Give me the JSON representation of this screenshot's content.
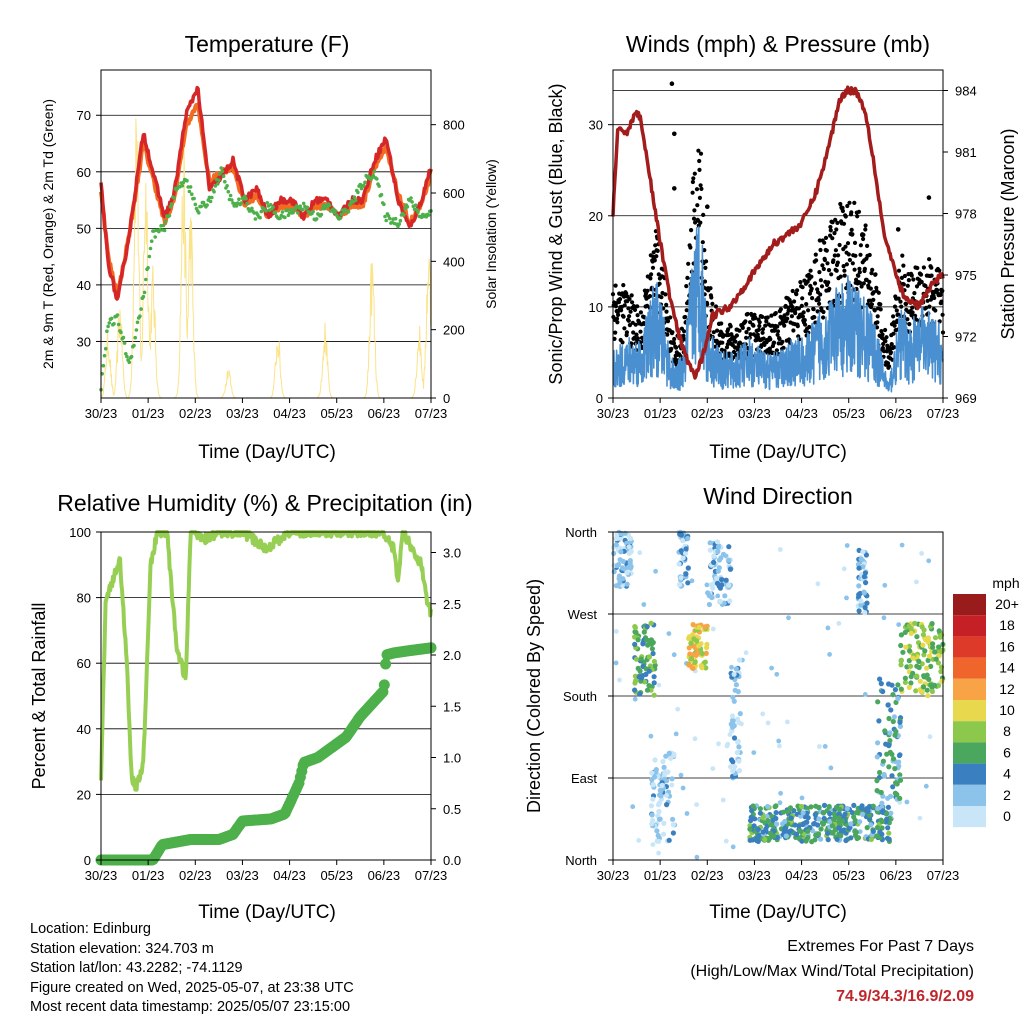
{
  "time_ticks": [
    "30/23",
    "01/23",
    "02/23",
    "03/23",
    "04/23",
    "05/23",
    "06/23",
    "07/23"
  ],
  "colors": {
    "temp2m": "#d62728",
    "temp9m": "#f26b21",
    "dewpoint": "#4db04a",
    "solar": "#fbe38a",
    "gust": "#000000",
    "wind": "#4a90d0",
    "pressure": "#a31c1c",
    "rh": "#97cf55",
    "precip": "#4db04a"
  },
  "panels": {
    "temperature": {
      "title": "Temperature (F)",
      "xlabel": "Time (Day/UTC)",
      "ylabel": "2m & 9m T (Red, Orange) & 2m Td (Green)",
      "y2label": "Solar Insolation (Yellow)"
    },
    "winds": {
      "title": "Winds (mph) & Pressure (mb)",
      "xlabel": "Time (Day/UTC)",
      "ylabel": "Sonic/Prop Wind & Gust (Blue, Black)",
      "y2label": "Station Pressure (Maroon)"
    },
    "humidity": {
      "title": "Relative Humidity (%) & Precipitation (in)",
      "xlabel": "Time (Day/UTC)",
      "ylabel": "Percent & Total Rainfall"
    },
    "direction": {
      "title": "Wind Direction",
      "xlabel": "Time (Day/UTC)",
      "ylabel": "Direction (Colored By Speed)"
    }
  },
  "colorbar": {
    "unit": "mph",
    "labels": [
      "20+",
      "18",
      "16",
      "14",
      "12",
      "10",
      "8",
      "6",
      "4",
      "2",
      "0"
    ],
    "colors": [
      "#991b1b",
      "#c62027",
      "#dd3a2a",
      "#f0652b",
      "#f8a346",
      "#e8d84e",
      "#8cc84b",
      "#4ba65e",
      "#3a7fbf",
      "#8cc3ea",
      "#c8e6f8"
    ]
  },
  "info": {
    "location": "Location: Edinburg",
    "elevation": "Station elevation: 324.703 m",
    "latlon": "Station lat/lon: 43.2282; -74.1129",
    "created": "Figure created on Wed, 2025-05-07, at 23:38 UTC",
    "recent": "Most recent data timestamp: 2025/05/07 23:15:00"
  },
  "extremes": {
    "title": "Extremes For Past 7 Days",
    "subtitle": "(High/Low/Max Wind/Total Precipitation)",
    "values": "74.9/34.3/16.9/2.09"
  },
  "chart_data": [
    {
      "type": "line",
      "title": "Temperature (F)",
      "xlabel": "Time (Day/UTC)",
      "ylabel": "2m & 9m T (Red, Orange) & 2m Td (Green)",
      "y2label": "Solar Insolation (Yellow)",
      "x": [
        0,
        0.15,
        0.35,
        0.6,
        0.9,
        1.1,
        1.35,
        1.55,
        1.8,
        2.05,
        2.3,
        2.55,
        2.8,
        3.05,
        3.3,
        3.55,
        3.8,
        4.05,
        4.3,
        4.55,
        4.8,
        5.05,
        5.3,
        5.55,
        5.8,
        6.05,
        6.3,
        6.55,
        6.8,
        7.0
      ],
      "ylim": [
        20,
        78
      ],
      "y2lim": [
        0,
        960
      ],
      "y2ticks": [
        0,
        200,
        400,
        600,
        800
      ],
      "series": [
        {
          "name": "2m T",
          "axis": "y",
          "values": [
            58,
            44,
            37,
            49,
            67,
            60,
            52,
            56,
            70,
            75,
            57,
            59,
            62,
            55,
            57,
            52,
            55,
            55,
            52,
            55,
            55,
            52,
            55,
            55,
            62,
            66,
            55,
            50,
            55,
            61
          ]
        },
        {
          "name": "9m T",
          "axis": "y",
          "values": [
            57,
            45,
            38,
            49,
            65,
            59,
            51,
            55,
            68,
            72,
            58,
            60,
            61,
            54,
            56,
            52,
            54,
            54,
            52,
            54,
            54,
            52,
            54,
            54,
            61,
            64,
            56,
            51,
            54,
            60
          ]
        },
        {
          "name": "2m Td",
          "axis": "y",
          "values": [
            22,
            33,
            34,
            26,
            38,
            49,
            50,
            56,
            59,
            53,
            55,
            60,
            54,
            55,
            52,
            54,
            52,
            53,
            54,
            52,
            54,
            52,
            54,
            58,
            60,
            52,
            51,
            55,
            52,
            53
          ]
        },
        {
          "name": "Solar Insolation",
          "axis": "y2",
          "peaks": [
            {
              "x": 0.15,
              "value": 200
            },
            {
              "x": 0.4,
              "value": 300
            },
            {
              "x": 0.75,
              "value": 950
            },
            {
              "x": 0.95,
              "value": 750
            },
            {
              "x": 1.1,
              "value": 400
            },
            {
              "x": 1.75,
              "value": 750
            },
            {
              "x": 1.9,
              "value": 600
            },
            {
              "x": 2.7,
              "value": 100
            },
            {
              "x": 3.75,
              "value": 200
            },
            {
              "x": 4.75,
              "value": 230
            },
            {
              "x": 5.75,
              "value": 440
            },
            {
              "x": 6.75,
              "value": 220
            },
            {
              "x": 6.95,
              "value": 480
            }
          ]
        }
      ]
    },
    {
      "type": "scatter",
      "title": "Winds (mph) & Pressure (mb)",
      "xlabel": "Time (Day/UTC)",
      "ylabel": "Sonic/Prop Wind & Gust (Blue, Black)",
      "y2label": "Station Pressure (Maroon)",
      "ylim": [
        0,
        36
      ],
      "yticks": [
        0,
        10,
        20,
        30
      ],
      "y2lim": [
        969,
        985
      ],
      "y2ticks": [
        969,
        972,
        975,
        978,
        981,
        984
      ],
      "series": [
        {
          "name": "Station Pressure",
          "axis": "y2",
          "x": [
            0,
            0.1,
            0.3,
            0.5,
            0.6,
            0.9,
            1.2,
            1.4,
            1.55,
            1.75,
            1.9,
            2.1,
            2.5,
            2.8,
            3.1,
            3.4,
            3.7,
            4.0,
            4.3,
            4.55,
            4.8,
            4.95,
            5.15,
            5.35,
            5.5,
            5.75,
            6.0,
            6.2,
            6.5,
            6.75,
            7.0
          ],
          "values": [
            978,
            982,
            982,
            983,
            982.5,
            978,
            974,
            972,
            971,
            970,
            971,
            973,
            973.5,
            974.5,
            975.5,
            976.5,
            977,
            977.5,
            979,
            981,
            983.5,
            984,
            984,
            983,
            981,
            977,
            975,
            973.8,
            973.5,
            974.5,
            975
          ]
        },
        {
          "name": "Wind",
          "axis": "y",
          "x": [
            0,
            0.3,
            0.6,
            0.9,
            1.1,
            1.3,
            1.5,
            1.7,
            1.85,
            2.0,
            2.3,
            2.6,
            2.9,
            3.2,
            3.5,
            3.8,
            4.1,
            4.4,
            4.7,
            5.0,
            5.3,
            5.55,
            5.7,
            5.85,
            6.1,
            6.3,
            6.6,
            6.9,
            7.0
          ],
          "values": [
            3,
            4,
            4,
            8,
            5,
            2,
            3,
            10,
            13,
            5,
            3,
            3,
            4,
            3,
            3,
            4,
            4,
            6,
            7,
            8,
            7,
            5,
            3,
            1,
            6,
            5,
            6,
            5,
            4
          ]
        },
        {
          "name": "Gust",
          "axis": "y",
          "x": [
            0,
            0.3,
            0.6,
            0.9,
            1.1,
            1.3,
            1.5,
            1.7,
            1.85,
            2.0,
            2.3,
            2.6,
            2.9,
            3.2,
            3.5,
            3.8,
            4.1,
            4.4,
            4.7,
            5.0,
            5.3,
            5.55,
            5.7,
            5.85,
            6.1,
            6.3,
            6.6,
            6.9,
            7.0
          ],
          "values": [
            10,
            9,
            7,
            14,
            10,
            5,
            6,
            18,
            22,
            10,
            6,
            6,
            7,
            7,
            7,
            9,
            10,
            13,
            15,
            17,
            15,
            11,
            7,
            4,
            12,
            10,
            12,
            11,
            9
          ]
        }
      ]
    },
    {
      "type": "line",
      "title": "Relative Humidity (%) & Precipitation (in)",
      "xlabel": "Time (Day/UTC)",
      "ylabel": "Percent & Total Rainfall",
      "ylim": [
        0,
        100
      ],
      "y2lim": [
        0,
        3.2
      ],
      "y2ticks": [
        0.0,
        0.5,
        1.0,
        1.5,
        2.0,
        2.5,
        3.0
      ],
      "series": [
        {
          "name": "Relative Humidity",
          "axis": "y",
          "x": [
            0,
            0.1,
            0.25,
            0.4,
            0.55,
            0.65,
            0.75,
            0.9,
            1.05,
            1.2,
            1.4,
            1.6,
            1.8,
            1.9,
            2.0,
            2.2,
            2.5,
            3.0,
            3.5,
            4.0,
            4.5,
            5.0,
            5.5,
            6.0,
            6.2,
            6.3,
            6.4,
            6.6,
            6.8,
            6.9,
            7.0
          ],
          "values": [
            25,
            80,
            85,
            92,
            60,
            25,
            22,
            30,
            90,
            100,
            100,
            65,
            55,
            100,
            100,
            98,
            100,
            100,
            95,
            100,
            100,
            100,
            100,
            100,
            95,
            85,
            100,
            95,
            90,
            80,
            75
          ]
        },
        {
          "name": "Total Precipitation",
          "axis": "y2",
          "x": [
            0,
            1.1,
            1.3,
            1.9,
            2.5,
            2.8,
            3.0,
            3.6,
            3.9,
            4.0,
            4.2,
            4.3,
            4.6,
            4.9,
            5.2,
            5.5,
            5.7,
            6.0,
            6.05,
            6.2,
            6.5,
            7.0
          ],
          "values": [
            0,
            0,
            0.15,
            0.2,
            0.2,
            0.25,
            0.38,
            0.4,
            0.45,
            0.55,
            0.75,
            0.95,
            1.0,
            1.1,
            1.2,
            1.4,
            1.5,
            1.65,
            2.0,
            2.02,
            2.04,
            2.07
          ]
        }
      ]
    },
    {
      "type": "scatter",
      "title": "Wind Direction",
      "xlabel": "Time (Day/UTC)",
      "ylabel": "Direction (Colored By Speed)",
      "ylim": [
        0,
        360
      ],
      "yticks": [
        "North",
        "East",
        "South",
        "West",
        "North"
      ],
      "color_by": "speed (mph)",
      "clusters": [
        {
          "x0": 0.0,
          "x1": 0.4,
          "dir0": 300,
          "dir1": 360,
          "speed": 3
        },
        {
          "x0": 0.45,
          "x1": 0.9,
          "dir0": 180,
          "dir1": 260,
          "speed": 7
        },
        {
          "x0": 0.8,
          "x1": 1.3,
          "dir0": 20,
          "dir1": 120,
          "speed": 2
        },
        {
          "x0": 1.4,
          "x1": 1.6,
          "dir0": 300,
          "dir1": 360,
          "speed": 3
        },
        {
          "x0": 1.6,
          "x1": 2.0,
          "dir0": 210,
          "dir1": 260,
          "speed": 11
        },
        {
          "x0": 2.0,
          "x1": 2.5,
          "dir0": 280,
          "dir1": 350,
          "speed": 3
        },
        {
          "x0": 2.5,
          "x1": 2.7,
          "dir0": 90,
          "dir1": 220,
          "speed": 3
        },
        {
          "x0": 2.9,
          "x1": 5.9,
          "dir0": 20,
          "dir1": 60,
          "speed": 6
        },
        {
          "x0": 5.2,
          "x1": 5.4,
          "dir0": 270,
          "dir1": 340,
          "speed": 3
        },
        {
          "x0": 5.6,
          "x1": 6.1,
          "dir0": 60,
          "dir1": 200,
          "speed": 5
        },
        {
          "x0": 6.1,
          "x1": 7.0,
          "dir0": 180,
          "dir1": 260,
          "speed": 9
        }
      ]
    }
  ]
}
